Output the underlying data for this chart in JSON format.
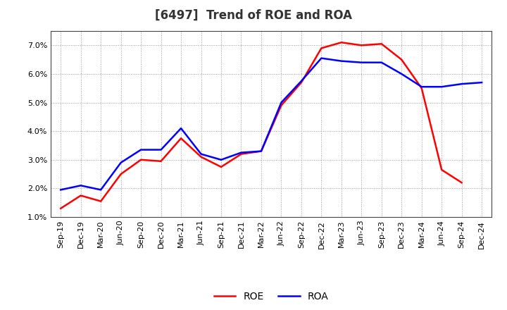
{
  "title": "[6497]  Trend of ROE and ROA",
  "x_labels": [
    "Sep-19",
    "Dec-19",
    "Mar-20",
    "Jun-20",
    "Sep-20",
    "Dec-20",
    "Mar-21",
    "Jun-21",
    "Sep-21",
    "Dec-21",
    "Mar-22",
    "Jun-22",
    "Sep-22",
    "Dec-22",
    "Mar-23",
    "Jun-23",
    "Sep-23",
    "Dec-23",
    "Mar-24",
    "Jun-24",
    "Sep-24",
    "Dec-24"
  ],
  "roe": [
    1.3,
    1.75,
    1.55,
    2.5,
    3.0,
    2.95,
    3.75,
    3.1,
    2.75,
    3.2,
    3.3,
    4.9,
    5.7,
    6.9,
    7.1,
    7.0,
    7.05,
    6.5,
    5.5,
    2.65,
    2.2,
    null
  ],
  "roa": [
    1.95,
    2.1,
    1.95,
    2.9,
    3.35,
    3.35,
    4.1,
    3.2,
    3.0,
    3.25,
    3.3,
    5.0,
    5.75,
    6.55,
    6.45,
    6.4,
    6.4,
    6.0,
    5.55,
    5.55,
    5.65,
    5.7
  ],
  "ylim": [
    1.0,
    7.5
  ],
  "yticks": [
    1.0,
    2.0,
    3.0,
    4.0,
    5.0,
    6.0,
    7.0
  ],
  "roe_color": "#ff0000",
  "roa_color": "#0000ff",
  "background_color": "#ffffff",
  "grid_color": "#999999",
  "line_width": 1.8,
  "title_fontsize": 12,
  "legend_fontsize": 10,
  "tick_fontsize": 8
}
